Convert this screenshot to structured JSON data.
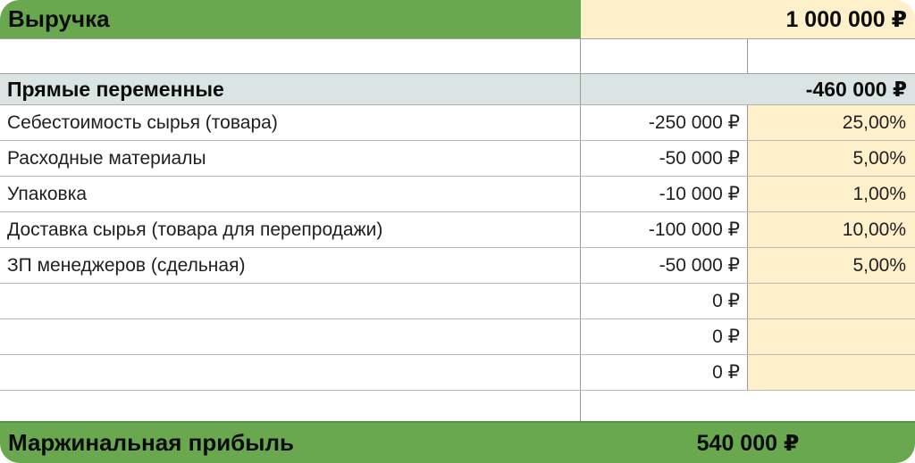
{
  "table": {
    "revenue": {
      "label": "Выручка",
      "value": "1 000 000 ₽"
    },
    "direct_variables": {
      "label": "Прямые переменные",
      "value": "-460 000 ₽"
    },
    "columns": {
      "label": "",
      "value": "",
      "percent": ""
    },
    "rows": [
      {
        "label": "Себестоимость сырья (товара)",
        "value": "-250 000 ₽",
        "percent": "25,00%"
      },
      {
        "label": "Расходные материалы",
        "value": "-50 000 ₽",
        "percent": "5,00%"
      },
      {
        "label": "Упаковка",
        "value": "-10 000 ₽",
        "percent": "1,00%"
      },
      {
        "label": "Доставка сырья (товара для перепродажи)",
        "value": "-100 000 ₽",
        "percent": "10,00%"
      },
      {
        "label": "ЗП менеджеров (сдельная)",
        "value": "-50 000 ₽",
        "percent": "5,00%"
      },
      {
        "label": "",
        "value": "0 ₽",
        "percent": ""
      },
      {
        "label": "",
        "value": "0 ₽",
        "percent": ""
      },
      {
        "label": "",
        "value": "0 ₽",
        "percent": ""
      }
    ],
    "margin_profit": {
      "label": "Маржинальная прибыль",
      "value": "540 000 ₽"
    },
    "colors": {
      "header_green": "#6aa84f",
      "footer_green": "#6aa84f",
      "highlight_cream": "#fdf0ca",
      "section_cyan": "#d9e4e3"
    }
  }
}
